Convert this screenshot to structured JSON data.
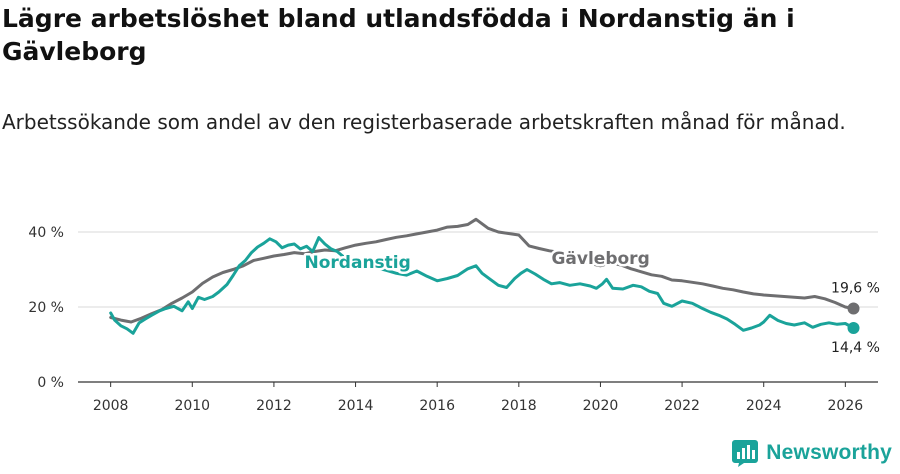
{
  "title": "Lägre arbetslöshet bland utlandsfödda i Nordanstig än i Gävleborg",
  "subtitle": "Arbetssökande som andel av den registerbaserade arbetskraften månad för månad.",
  "brand": {
    "name": "Newsworthy",
    "icon": "newsworthy-logo-icon",
    "color": "#1aa39a"
  },
  "chart_data": {
    "type": "line",
    "title": "Lägre arbetslöshet bland utlandsfödda i Nordanstig än i Gävleborg",
    "subtitle": "Arbetssökande som andel av den registerbaserade arbetskraften månad för månad.",
    "xlabel": "",
    "ylabel": "",
    "xlim": [
      2007.2,
      2026.8
    ],
    "ylim": [
      0,
      40
    ],
    "x_ticks": [
      2008,
      2010,
      2012,
      2014,
      2016,
      2018,
      2020,
      2022,
      2024,
      2026
    ],
    "x_tick_labels": [
      "2008",
      "2010",
      "2012",
      "2014",
      "2016",
      "2018",
      "2020",
      "2022",
      "2024",
      "2026"
    ],
    "y_ticks": [
      0,
      20,
      40
    ],
    "y_tick_labels": [
      "0 %",
      "20 %",
      "40 %"
    ],
    "grid": true,
    "series": [
      {
        "name": "Gävleborg",
        "color": "#6e6e70",
        "end_label": "19,6 %",
        "points": [
          [
            2008.0,
            17.2
          ],
          [
            2008.25,
            16.5
          ],
          [
            2008.5,
            16.0
          ],
          [
            2008.75,
            17.0
          ],
          [
            2009.0,
            18.2
          ],
          [
            2009.25,
            19.3
          ],
          [
            2009.5,
            21.0
          ],
          [
            2009.75,
            22.4
          ],
          [
            2010.0,
            24.0
          ],
          [
            2010.25,
            26.3
          ],
          [
            2010.5,
            28.0
          ],
          [
            2010.75,
            29.2
          ],
          [
            2011.0,
            30.0
          ],
          [
            2011.25,
            31.0
          ],
          [
            2011.5,
            32.4
          ],
          [
            2011.75,
            33.0
          ],
          [
            2012.0,
            33.6
          ],
          [
            2012.25,
            34.0
          ],
          [
            2012.5,
            34.5
          ],
          [
            2012.75,
            34.2
          ],
          [
            2013.0,
            34.8
          ],
          [
            2013.25,
            35.2
          ],
          [
            2013.5,
            35.0
          ],
          [
            2013.75,
            35.8
          ],
          [
            2014.0,
            36.5
          ],
          [
            2014.25,
            37.0
          ],
          [
            2014.5,
            37.4
          ],
          [
            2014.75,
            38.0
          ],
          [
            2015.0,
            38.6
          ],
          [
            2015.25,
            39.0
          ],
          [
            2015.5,
            39.5
          ],
          [
            2015.75,
            40.0
          ],
          [
            2016.0,
            40.5
          ],
          [
            2016.25,
            41.3
          ],
          [
            2016.5,
            41.5
          ],
          [
            2016.75,
            42.0
          ],
          [
            2016.95,
            43.4
          ],
          [
            2017.25,
            41.0
          ],
          [
            2017.5,
            40.0
          ],
          [
            2017.75,
            39.6
          ],
          [
            2018.0,
            39.2
          ],
          [
            2018.25,
            36.3
          ],
          [
            2018.5,
            35.6
          ],
          [
            2018.75,
            35.0
          ],
          [
            2019.0,
            34.6
          ],
          [
            2019.25,
            33.5
          ],
          [
            2019.5,
            32.5
          ],
          [
            2019.75,
            31.6
          ],
          [
            2020.0,
            31.0
          ],
          [
            2020.25,
            31.8
          ],
          [
            2020.5,
            31.2
          ],
          [
            2020.75,
            30.2
          ],
          [
            2021.0,
            29.4
          ],
          [
            2021.25,
            28.6
          ],
          [
            2021.5,
            28.2
          ],
          [
            2021.75,
            27.2
          ],
          [
            2022.0,
            27.0
          ],
          [
            2022.25,
            26.6
          ],
          [
            2022.5,
            26.2
          ],
          [
            2022.75,
            25.6
          ],
          [
            2023.0,
            25.0
          ],
          [
            2023.25,
            24.6
          ],
          [
            2023.5,
            24.0
          ],
          [
            2023.75,
            23.5
          ],
          [
            2024.0,
            23.2
          ],
          [
            2024.25,
            23.0
          ],
          [
            2024.5,
            22.8
          ],
          [
            2024.75,
            22.6
          ],
          [
            2025.0,
            22.4
          ],
          [
            2025.25,
            22.8
          ],
          [
            2025.5,
            22.2
          ],
          [
            2025.75,
            21.2
          ],
          [
            2026.0,
            20.0
          ],
          [
            2026.2,
            19.6
          ]
        ]
      },
      {
        "name": "Nordanstig",
        "color": "#1aa39a",
        "end_label": "14,4 %",
        "points": [
          [
            2008.0,
            18.4
          ],
          [
            2008.1,
            16.5
          ],
          [
            2008.25,
            15.0
          ],
          [
            2008.4,
            14.2
          ],
          [
            2008.55,
            13.0
          ],
          [
            2008.7,
            15.8
          ],
          [
            2008.85,
            16.8
          ],
          [
            2009.0,
            17.8
          ],
          [
            2009.2,
            19.0
          ],
          [
            2009.35,
            19.6
          ],
          [
            2009.55,
            20.2
          ],
          [
            2009.75,
            19.0
          ],
          [
            2009.9,
            21.4
          ],
          [
            2010.0,
            19.6
          ],
          [
            2010.15,
            22.6
          ],
          [
            2010.3,
            22.0
          ],
          [
            2010.5,
            22.8
          ],
          [
            2010.65,
            24.0
          ],
          [
            2010.85,
            26.0
          ],
          [
            2011.0,
            28.4
          ],
          [
            2011.15,
            31.0
          ],
          [
            2011.3,
            32.4
          ],
          [
            2011.45,
            34.5
          ],
          [
            2011.6,
            36.0
          ],
          [
            2011.75,
            37.0
          ],
          [
            2011.9,
            38.2
          ],
          [
            2012.05,
            37.4
          ],
          [
            2012.2,
            35.8
          ],
          [
            2012.35,
            36.5
          ],
          [
            2012.5,
            36.8
          ],
          [
            2012.65,
            35.5
          ],
          [
            2012.8,
            36.2
          ],
          [
            2012.95,
            34.8
          ],
          [
            2013.1,
            38.5
          ],
          [
            2013.25,
            36.8
          ],
          [
            2013.4,
            35.5
          ],
          [
            2013.55,
            34.8
          ],
          [
            2013.75,
            33.0
          ],
          [
            2014.0,
            32.0
          ],
          [
            2014.25,
            31.0
          ],
          [
            2014.5,
            30.5
          ],
          [
            2014.75,
            29.8
          ],
          [
            2015.0,
            29.0
          ],
          [
            2015.25,
            28.5
          ],
          [
            2015.5,
            29.6
          ],
          [
            2015.75,
            28.2
          ],
          [
            2016.0,
            27.0
          ],
          [
            2016.25,
            27.6
          ],
          [
            2016.5,
            28.4
          ],
          [
            2016.75,
            30.2
          ],
          [
            2016.95,
            31.0
          ],
          [
            2017.1,
            29.0
          ],
          [
            2017.3,
            27.4
          ],
          [
            2017.5,
            25.8
          ],
          [
            2017.7,
            25.2
          ],
          [
            2017.9,
            27.6
          ],
          [
            2018.05,
            29.0
          ],
          [
            2018.2,
            30.0
          ],
          [
            2018.4,
            28.8
          ],
          [
            2018.6,
            27.4
          ],
          [
            2018.8,
            26.2
          ],
          [
            2019.0,
            26.5
          ],
          [
            2019.25,
            25.8
          ],
          [
            2019.5,
            26.2
          ],
          [
            2019.75,
            25.6
          ],
          [
            2019.9,
            25.0
          ],
          [
            2020.05,
            26.2
          ],
          [
            2020.15,
            27.4
          ],
          [
            2020.3,
            25.0
          ],
          [
            2020.55,
            24.8
          ],
          [
            2020.8,
            25.8
          ],
          [
            2021.0,
            25.4
          ],
          [
            2021.2,
            24.2
          ],
          [
            2021.4,
            23.6
          ],
          [
            2021.55,
            21.0
          ],
          [
            2021.75,
            20.2
          ],
          [
            2022.0,
            21.6
          ],
          [
            2022.25,
            21.0
          ],
          [
            2022.5,
            19.6
          ],
          [
            2022.7,
            18.6
          ],
          [
            2022.9,
            17.8
          ],
          [
            2023.1,
            16.8
          ],
          [
            2023.3,
            15.4
          ],
          [
            2023.5,
            13.8
          ],
          [
            2023.7,
            14.4
          ],
          [
            2023.9,
            15.2
          ],
          [
            2024.0,
            16.0
          ],
          [
            2024.15,
            17.8
          ],
          [
            2024.35,
            16.4
          ],
          [
            2024.55,
            15.6
          ],
          [
            2024.75,
            15.2
          ],
          [
            2025.0,
            15.8
          ],
          [
            2025.2,
            14.6
          ],
          [
            2025.4,
            15.4
          ],
          [
            2025.6,
            15.8
          ],
          [
            2025.8,
            15.4
          ],
          [
            2026.0,
            15.6
          ],
          [
            2026.2,
            14.4
          ]
        ]
      }
    ]
  }
}
